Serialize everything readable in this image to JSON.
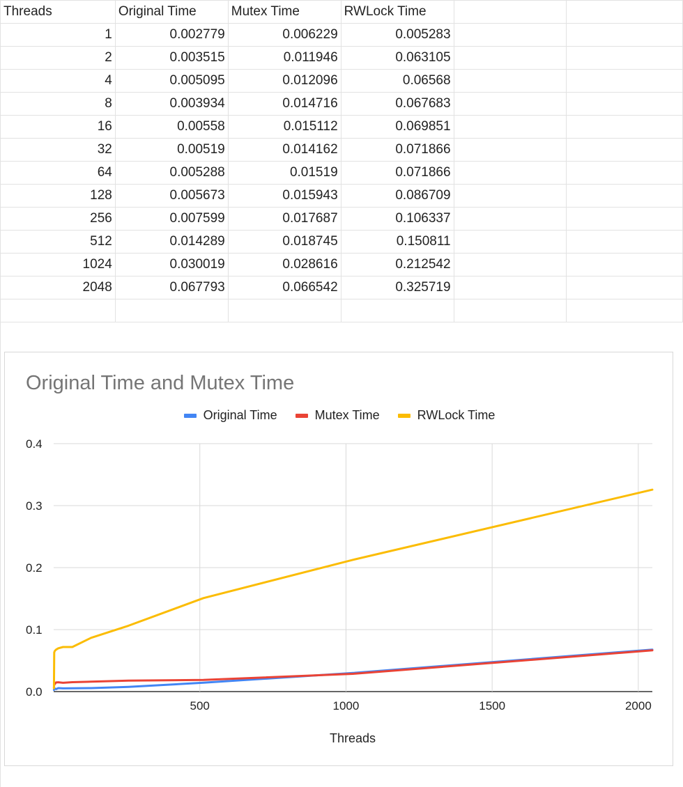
{
  "sheet": {
    "headers": [
      "Threads",
      "Original Time",
      "Mutex Time",
      "RWLock Time"
    ],
    "rows": [
      [
        "1",
        "0.002779",
        "0.006229",
        "0.005283"
      ],
      [
        "2",
        "0.003515",
        "0.011946",
        "0.063105"
      ],
      [
        "4",
        "0.005095",
        "0.012096",
        "0.06568"
      ],
      [
        "8",
        "0.003934",
        "0.014716",
        "0.067683"
      ],
      [
        "16",
        "0.00558",
        "0.015112",
        "0.069851"
      ],
      [
        "32",
        "0.00519",
        "0.014162",
        "0.071866"
      ],
      [
        "64",
        "0.005288",
        "0.01519",
        "0.071866"
      ],
      [
        "128",
        "0.005673",
        "0.015943",
        "0.086709"
      ],
      [
        "256",
        "0.007599",
        "0.017687",
        "0.106337"
      ],
      [
        "512",
        "0.014289",
        "0.018745",
        "0.150811"
      ],
      [
        "1024",
        "0.030019",
        "0.028616",
        "0.212542"
      ],
      [
        "2048",
        "0.067793",
        "0.066542",
        "0.325719"
      ]
    ]
  },
  "chart_data": {
    "type": "line",
    "title": "Original Time and Mutex Time",
    "xlabel": "Threads",
    "ylabel": "",
    "xlim": [
      0,
      2048
    ],
    "ylim": [
      0,
      0.4
    ],
    "xticks": [
      "500",
      "1000",
      "1500",
      "2000"
    ],
    "yticks": [
      "0.0",
      "0.1",
      "0.2",
      "0.3",
      "0.4"
    ],
    "legend_position": "top",
    "grid": true,
    "x": [
      1,
      2,
      4,
      8,
      16,
      32,
      64,
      128,
      256,
      512,
      1024,
      2048
    ],
    "series": [
      {
        "name": "Original Time",
        "color": "#4285f4",
        "values": [
          0.002779,
          0.003515,
          0.005095,
          0.003934,
          0.00558,
          0.00519,
          0.005288,
          0.005673,
          0.007599,
          0.014289,
          0.030019,
          0.067793
        ]
      },
      {
        "name": "Mutex Time",
        "color": "#ea4335",
        "values": [
          0.006229,
          0.011946,
          0.012096,
          0.014716,
          0.015112,
          0.014162,
          0.01519,
          0.015943,
          0.017687,
          0.018745,
          0.028616,
          0.066542
        ]
      },
      {
        "name": "RWLock Time",
        "color": "#fbbc04",
        "values": [
          0.005283,
          0.063105,
          0.06568,
          0.067683,
          0.069851,
          0.071866,
          0.071866,
          0.086709,
          0.106337,
          0.150811,
          0.212542,
          0.325719
        ]
      }
    ]
  }
}
